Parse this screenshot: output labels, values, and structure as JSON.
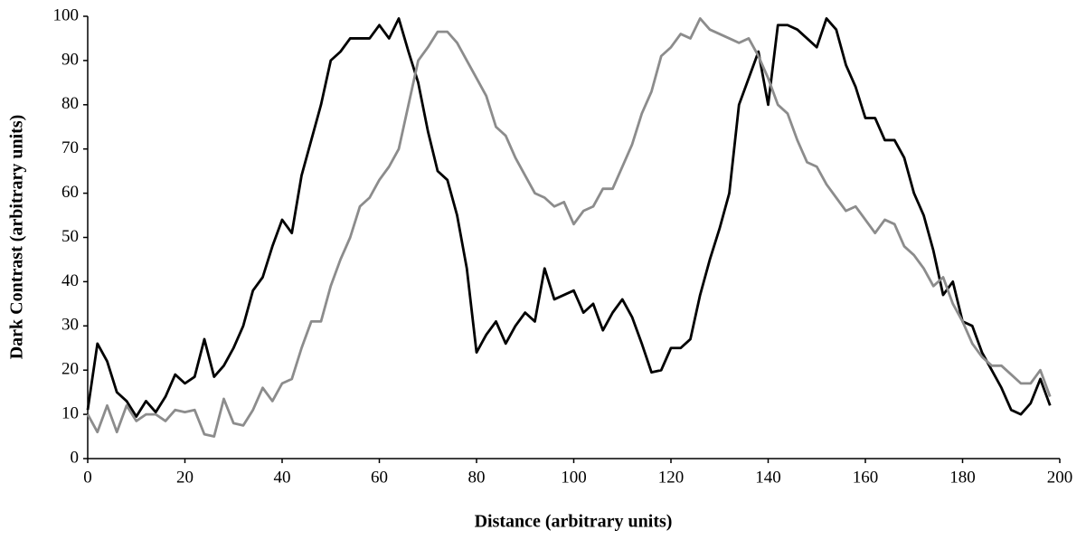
{
  "chart_data": {
    "type": "line",
    "xlabel": "Distance (arbitrary units)",
    "ylabel": "Dark Contrast (arbitrary units)",
    "x": [
      0,
      2,
      4,
      6,
      8,
      10,
      12,
      14,
      16,
      18,
      20,
      22,
      24,
      26,
      28,
      30,
      32,
      34,
      36,
      38,
      40,
      42,
      44,
      46,
      48,
      50,
      52,
      54,
      56,
      58,
      60,
      62,
      64,
      66,
      68,
      70,
      72,
      74,
      76,
      78,
      80,
      82,
      84,
      86,
      88,
      90,
      92,
      94,
      96,
      98,
      100,
      102,
      104,
      106,
      108,
      110,
      112,
      114,
      116,
      118,
      120,
      122,
      124,
      126,
      128,
      130,
      132,
      134,
      136,
      138,
      140,
      142,
      144,
      146,
      148,
      150,
      152,
      154,
      156,
      158,
      160,
      162,
      164,
      166,
      168,
      170,
      172,
      174,
      176,
      178,
      180,
      182,
      184,
      186,
      188,
      190,
      192,
      194,
      196,
      198
    ],
    "series": [
      {
        "color": "#000000",
        "values": [
          11,
          26,
          22,
          15,
          13,
          9.5,
          13,
          10.5,
          14,
          19,
          17,
          18.5,
          27,
          18.5,
          21,
          25,
          30,
          38,
          41,
          48,
          54,
          51,
          64,
          72,
          80,
          90,
          92,
          95,
          95,
          95,
          98,
          95,
          99.5,
          92,
          85,
          74,
          65,
          63,
          55,
          43,
          24,
          28,
          31,
          26,
          30,
          33,
          31,
          43,
          36,
          37,
          38,
          33,
          35,
          29,
          33,
          36,
          32,
          26,
          19.5,
          20,
          25,
          25,
          27,
          37,
          45,
          52,
          60,
          80,
          86,
          92,
          80,
          98,
          98,
          97,
          95,
          93,
          99.5,
          97,
          89,
          84,
          77,
          77,
          72,
          72,
          68,
          60,
          55,
          47,
          37,
          40,
          31,
          30,
          24,
          20,
          16,
          11,
          10,
          12.5,
          18,
          12
        ]
      },
      {
        "color": "#8c8c8c",
        "values": [
          10,
          6,
          12,
          6,
          12,
          8.5,
          10,
          10,
          8.5,
          11,
          10.5,
          11,
          5.5,
          5,
          13.5,
          8,
          7.5,
          11,
          16,
          13,
          17,
          18,
          25,
          31,
          31,
          39,
          45,
          50,
          57,
          59,
          63,
          66,
          70,
          80,
          90,
          93,
          96.5,
          96.5,
          94,
          90,
          86,
          82,
          75,
          73,
          68,
          64,
          60,
          59,
          57,
          58,
          53,
          56,
          57,
          61,
          61,
          66,
          71,
          78,
          83,
          91,
          93,
          96,
          95,
          99.5,
          97,
          96,
          95,
          94,
          95,
          91,
          86,
          80,
          78,
          72,
          67,
          66,
          62,
          59,
          56,
          57,
          54,
          51,
          54,
          53,
          48,
          46,
          43,
          39,
          41,
          35,
          31,
          26,
          23,
          21,
          21,
          19,
          17,
          17,
          20,
          14
        ]
      }
    ],
    "xlim": [
      0,
      200
    ],
    "xticks": [
      0,
      20,
      40,
      60,
      80,
      100,
      120,
      140,
      160,
      180,
      200
    ],
    "ylim": [
      0,
      100
    ],
    "yticks": [
      0,
      10,
      20,
      30,
      40,
      50,
      60,
      70,
      80,
      90,
      100
    ]
  }
}
